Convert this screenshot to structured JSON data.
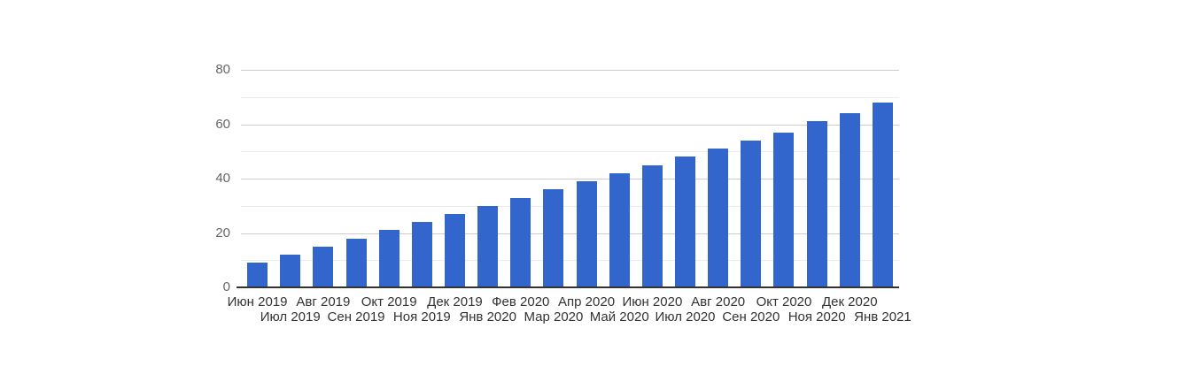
{
  "page": {
    "background_color": "#ffffff"
  },
  "chart_data": {
    "type": "bar",
    "title": "",
    "xlabel": "",
    "ylabel": "",
    "categories": [
      "Июн 2019",
      "Июл 2019",
      "Авг 2019",
      "Сен 2019",
      "Окт 2019",
      "Ноя 2019",
      "Дек 2019",
      "Янв 2020",
      "Фев 2020",
      "Мар 2020",
      "Апр 2020",
      "Май 2020",
      "Июн 2020",
      "Июл 2020",
      "Авг 2020",
      "Сен 2020",
      "Окт 2020",
      "Ноя 2020",
      "Дек 2020",
      "Янв 2021"
    ],
    "values": [
      9,
      12,
      15,
      18,
      21,
      24,
      27,
      30,
      33,
      36,
      39,
      42,
      45,
      48,
      51,
      54,
      57,
      61,
      64,
      68
    ],
    "ylim": [
      0,
      80
    ],
    "y_major_ticks": [
      0,
      20,
      40,
      60,
      80
    ],
    "y_minor_ticks": [
      10,
      30,
      50,
      70
    ],
    "grid": "horizontal",
    "legend": "none",
    "x_label_layout": "staggered-two-rows",
    "colors": {
      "bar": "#3366cc",
      "axis_line": "#333333",
      "major_gridline": "#cccccc",
      "minor_gridline": "#ececec",
      "x_tick_label": "#333333",
      "y_tick_label": "#666666",
      "background": "#ffffff"
    }
  }
}
